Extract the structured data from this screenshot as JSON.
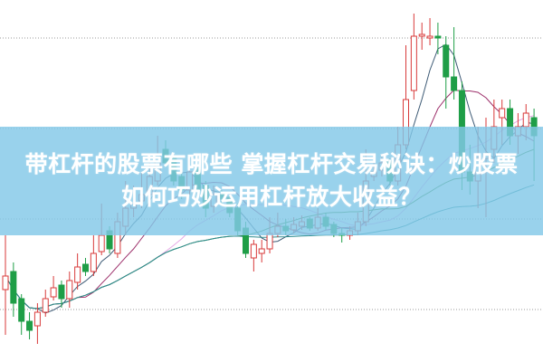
{
  "headline": {
    "line1": "带杠杆的股票有哪些 掌握杠杆交易秘诀：炒股票",
    "line2": "如何巧妙运用杠杆放大收益？"
  },
  "colors": {
    "up": "#d83a3a",
    "down": "#1f9e47",
    "ma5": "#3d5a75",
    "ma10": "#9c2f6a",
    "ma20": "#e7a8e6",
    "ma30": "#3d8a3a",
    "ma60": "#2b8b8f",
    "grid": "#999999",
    "banner": "#82c8e8"
  },
  "chart_data": {
    "type": "candlestick",
    "title": "",
    "xlabel": "",
    "ylabel": "",
    "ylim": [
      0,
      400
    ],
    "grid": "horizontal dotted",
    "moving_averages": [
      "MA5",
      "MA10",
      "MA20",
      "MA30",
      "MA60"
    ],
    "open": [
      80,
      100,
      70,
      45,
      40,
      55,
      72,
      85,
      70,
      88,
      108,
      100,
      122,
      145,
      120,
      150,
      170,
      178,
      185,
      200,
      235,
      225,
      205,
      190,
      212,
      195,
      172,
      185,
      182,
      170,
      148,
      115,
      120,
      125,
      142,
      150,
      146,
      150,
      158,
      148,
      160,
      152,
      142,
      140,
      145,
      155,
      205,
      212,
      222,
      200,
      240,
      300,
      360,
      358,
      360,
      350,
      315,
      300,
      210,
      200,
      225,
      235,
      270,
      280,
      250,
      260,
      270
    ],
    "high": [
      140,
      110,
      75,
      55,
      65,
      80,
      95,
      90,
      100,
      120,
      115,
      140,
      175,
      150,
      165,
      200,
      195,
      210,
      220,
      250,
      245,
      230,
      210,
      225,
      215,
      200,
      195,
      190,
      185,
      175,
      155,
      135,
      135,
      160,
      165,
      158,
      160,
      162,
      160,
      170,
      165,
      155,
      148,
      150,
      165,
      235,
      220,
      230,
      225,
      260,
      350,
      385,
      375,
      380,
      375,
      360,
      370,
      310,
      240,
      260,
      270,
      290,
      290,
      290,
      275,
      285,
      280
    ],
    "low": [
      30,
      50,
      30,
      25,
      20,
      50,
      68,
      60,
      60,
      80,
      95,
      95,
      118,
      120,
      115,
      140,
      160,
      170,
      180,
      195,
      215,
      195,
      180,
      185,
      180,
      160,
      165,
      175,
      160,
      140,
      115,
      100,
      110,
      120,
      138,
      140,
      142,
      146,
      145,
      145,
      146,
      138,
      132,
      135,
      140,
      150,
      200,
      205,
      195,
      195,
      235,
      290,
      345,
      350,
      340,
      280,
      290,
      190,
      185,
      170,
      160,
      220,
      240,
      240,
      230,
      245,
      200
    ],
    "close": [
      95,
      65,
      45,
      35,
      55,
      70,
      82,
      70,
      90,
      105,
      100,
      120,
      140,
      125,
      155,
      170,
      175,
      185,
      205,
      230,
      220,
      200,
      190,
      210,
      190,
      170,
      185,
      180,
      165,
      145,
      120,
      130,
      125,
      142,
      150,
      145,
      152,
      155,
      148,
      160,
      150,
      142,
      140,
      145,
      155,
      200,
      210,
      220,
      200,
      240,
      290,
      360,
      362,
      360,
      358,
      315,
      300,
      210,
      200,
      225,
      230,
      260,
      280,
      250,
      260,
      275,
      250
    ]
  }
}
